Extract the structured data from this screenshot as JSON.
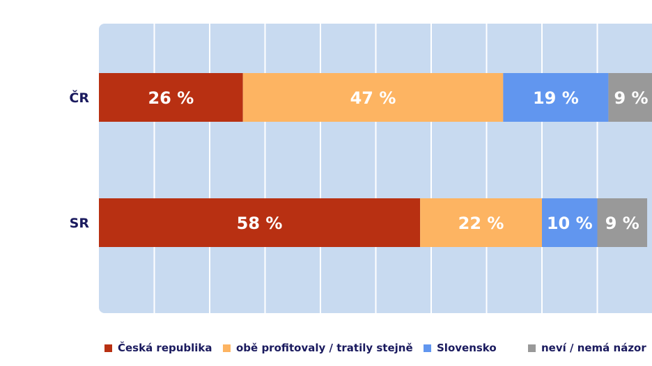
{
  "chart_data": {
    "type": "bar",
    "orientation": "horizontal",
    "stacked": true,
    "categories": [
      "ČR",
      "SR"
    ],
    "series": [
      {
        "name": "Česká republika",
        "values": [
          26,
          58
        ],
        "labels": [
          "26 %",
          "58 %"
        ],
        "color": "#b83012"
      },
      {
        "name": "obě profitovaly / tratily stejně",
        "values": [
          47,
          22
        ],
        "labels": [
          "47 %",
          "22 %"
        ],
        "color": "#fdb462"
      },
      {
        "name": "Slovensko",
        "values": [
          19,
          10
        ],
        "labels": [
          "19 %",
          "10 %"
        ],
        "color": "#6196ef"
      },
      {
        "name": "neví / nemá názor",
        "values": [
          9,
          9
        ],
        "labels": [
          "9 %",
          "9 %"
        ],
        "color": "#999999"
      }
    ],
    "xlim": [
      0,
      100
    ],
    "grid": true,
    "legend_position": "bottom",
    "colors": {
      "plot_background": "#c8daf0",
      "grid": "#ffffff",
      "category_text": "#1a1a5e",
      "label_text": "#ffffff"
    }
  }
}
